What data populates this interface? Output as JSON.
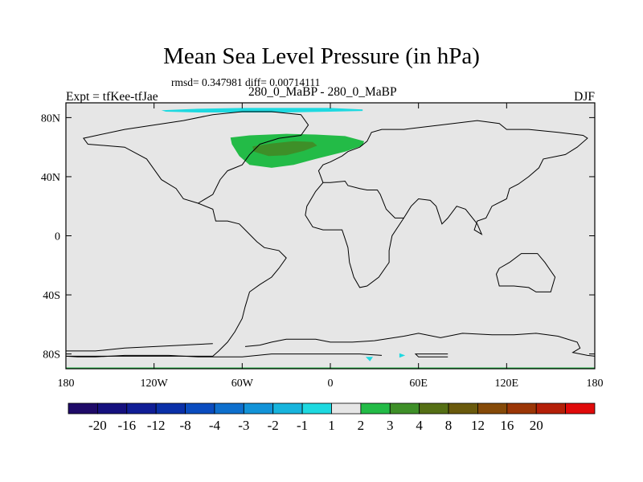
{
  "header": {
    "title": "Mean Sea Level Pressure (in hPa)",
    "stats": "rmsd= 0.347981 diff= 0.00714111",
    "expt": "Expt = tfKee-tfJae",
    "case": "280_0_MaBP - 280_0_MaBP",
    "season": "DJF"
  },
  "chart_data": {
    "type": "heatmap",
    "title": "Mean Sea Level Pressure (in hPa)",
    "xlim": [
      -180,
      180
    ],
    "ylim": [
      -90,
      90
    ],
    "x_ticks": [
      {
        "value": -180,
        "label": "180"
      },
      {
        "value": -120,
        "label": "120W"
      },
      {
        "value": -60,
        "label": "60W"
      },
      {
        "value": 0,
        "label": "0"
      },
      {
        "value": 60,
        "label": "60E"
      },
      {
        "value": 120,
        "label": "120E"
      },
      {
        "value": 180,
        "label": "180"
      }
    ],
    "y_ticks": [
      {
        "value": 80,
        "label": "80N"
      },
      {
        "value": 40,
        "label": "40N"
      },
      {
        "value": 0,
        "label": "0"
      },
      {
        "value": -40,
        "label": "40S"
      },
      {
        "value": -80,
        "label": "80S"
      }
    ],
    "background_color": "#e6e6e6",
    "colorbar": {
      "colors": [
        "#1f0a68",
        "#15107e",
        "#101e96",
        "#0a30a8",
        "#0a4cbf",
        "#0e6fcd",
        "#1293d8",
        "#17b4dd",
        "#1ed9e0",
        "#e6e6e6",
        "#23bb47",
        "#3e8f28",
        "#556f15",
        "#6a5a0c",
        "#854a08",
        "#9b3606",
        "#b41f08",
        "#e00a0a"
      ],
      "labels": [
        "-20",
        "-16",
        "-12",
        "-8",
        "-4",
        "-3",
        "-2",
        "-1",
        "1",
        "2",
        "3",
        "4",
        "8",
        "12",
        "16",
        "20"
      ]
    },
    "regions": [
      {
        "name": "arctic",
        "value_range": "-2 to -1",
        "color": "#1ed9e0",
        "points": [
          [
            -115,
            85
          ],
          [
            -90,
            86
          ],
          [
            -60,
            86.5
          ],
          [
            -30,
            86.5
          ],
          [
            0,
            86.5
          ],
          [
            22,
            85.5
          ],
          [
            22,
            84.5
          ],
          [
            0,
            84
          ],
          [
            -30,
            83.5
          ],
          [
            -60,
            83.5
          ],
          [
            -90,
            83.5
          ],
          [
            -112,
            84
          ]
        ]
      },
      {
        "name": "north-atlantic-outer",
        "value_range": "1 to 2",
        "color": "#23bb47",
        "points": [
          [
            -68,
            66.5
          ],
          [
            -55,
            68
          ],
          [
            -30,
            69
          ],
          [
            -10,
            68.5
          ],
          [
            10,
            67.5
          ],
          [
            23,
            64
          ],
          [
            22,
            61
          ],
          [
            10,
            57
          ],
          [
            -10,
            52
          ],
          [
            -25,
            48
          ],
          [
            -40,
            46
          ],
          [
            -55,
            48
          ],
          [
            -62,
            54
          ],
          [
            -67,
            62
          ]
        ]
      },
      {
        "name": "north-atlantic-inner",
        "value_range": "2 to 3",
        "color": "#3e8f28",
        "points": [
          [
            -53,
            60.5
          ],
          [
            -40,
            62.5
          ],
          [
            -25,
            64
          ],
          [
            -12,
            63.5
          ],
          [
            -9,
            61
          ],
          [
            -18,
            57.5
          ],
          [
            -30,
            54.5
          ],
          [
            -42,
            54
          ],
          [
            -52,
            57
          ]
        ]
      },
      {
        "name": "antarctic-patch-1",
        "value_range": "-2 to -1",
        "color": "#1ed9e0",
        "points": [
          [
            24,
            -82
          ],
          [
            29,
            -82
          ],
          [
            27,
            -85
          ]
        ]
      },
      {
        "name": "antarctic-patch-2",
        "value_range": "-2 to -1",
        "color": "#1ed9e0",
        "points": [
          [
            47,
            -79.5
          ],
          [
            51,
            -81
          ],
          [
            47,
            -82.5
          ]
        ]
      },
      {
        "name": "south-pole-strip",
        "value_range": "1 to 2",
        "color": "#23bb47",
        "points": [
          [
            -180,
            -89.2
          ],
          [
            180,
            -89.2
          ],
          [
            180,
            -90
          ],
          [
            -180,
            -90
          ]
        ]
      }
    ],
    "coastlines": [
      [
        [
          -180,
          -81.5
        ],
        [
          -80,
          -81.5
        ],
        [
          -76,
          -78
        ],
        [
          -70,
          -72
        ],
        [
          -65,
          -65
        ],
        [
          -60,
          -56
        ],
        [
          -58,
          -48
        ],
        [
          -55,
          -38
        ],
        [
          -48,
          -33
        ],
        [
          -40,
          -28
        ],
        [
          -35,
          -22
        ],
        [
          -30,
          -15
        ],
        [
          -35,
          -10
        ],
        [
          -45,
          -8
        ],
        [
          -50,
          -4
        ],
        [
          -58,
          4
        ],
        [
          -62,
          8
        ],
        [
          -70,
          10
        ],
        [
          -78,
          10
        ],
        [
          -80,
          18
        ],
        [
          -90,
          22
        ],
        [
          -100,
          25
        ],
        [
          -105,
          32
        ],
        [
          -115,
          38
        ],
        [
          -120,
          45
        ],
        [
          -125,
          52
        ],
        [
          -140,
          60
        ],
        [
          -165,
          62
        ],
        [
          -168,
          66
        ],
        [
          -140,
          72
        ],
        [
          -100,
          78
        ],
        [
          -80,
          82
        ],
        [
          -60,
          84
        ],
        [
          -40,
          84
        ],
        [
          -20,
          82
        ],
        [
          -15,
          75
        ],
        [
          -20,
          68
        ],
        [
          -35,
          66
        ],
        [
          -48,
          62
        ],
        [
          -55,
          55
        ],
        [
          -60,
          48
        ],
        [
          -70,
          44
        ],
        [
          -75,
          38
        ],
        [
          -80,
          28
        ],
        [
          -90,
          22
        ]
      ],
      [
        [
          -5,
          36
        ],
        [
          -8,
          44
        ],
        [
          -5,
          48
        ],
        [
          0,
          50
        ],
        [
          8,
          54
        ],
        [
          12,
          57
        ],
        [
          20,
          60
        ],
        [
          25,
          64
        ],
        [
          28,
          70
        ],
        [
          35,
          72
        ],
        [
          50,
          72
        ],
        [
          75,
          75
        ],
        [
          100,
          78
        ],
        [
          115,
          76
        ],
        [
          120,
          72
        ],
        [
          135,
          72
        ],
        [
          155,
          70
        ],
        [
          172,
          68
        ],
        [
          175,
          66
        ],
        [
          168,
          60
        ],
        [
          160,
          55
        ],
        [
          145,
          52
        ],
        [
          142,
          46
        ],
        [
          135,
          40
        ],
        [
          128,
          35
        ],
        [
          122,
          32
        ],
        [
          120,
          25
        ],
        [
          110,
          20
        ],
        [
          106,
          12
        ],
        [
          100,
          10
        ],
        [
          98,
          4
        ],
        [
          103,
          1
        ],
        [
          100,
          8
        ],
        [
          92,
          18
        ],
        [
          86,
          20
        ],
        [
          80,
          12
        ],
        [
          76,
          8
        ],
        [
          72,
          20
        ],
        [
          68,
          24
        ],
        [
          60,
          25
        ],
        [
          55,
          20
        ],
        [
          50,
          12
        ],
        [
          44,
          12
        ],
        [
          38,
          18
        ],
        [
          34,
          28
        ],
        [
          32,
          31
        ],
        [
          25,
          31
        ],
        [
          20,
          32
        ],
        [
          12,
          34
        ],
        [
          10,
          37
        ],
        [
          0,
          36
        ],
        [
          -5,
          36
        ]
      ],
      [
        [
          -5,
          36
        ],
        [
          -10,
          30
        ],
        [
          -16,
          20
        ],
        [
          -17,
          14
        ],
        [
          -12,
          6
        ],
        [
          -5,
          4
        ],
        [
          8,
          4
        ],
        [
          10,
          -2
        ],
        [
          12,
          -8
        ],
        [
          13,
          -18
        ],
        [
          16,
          -28
        ],
        [
          20,
          -35
        ],
        [
          25,
          -34
        ],
        [
          33,
          -28
        ],
        [
          40,
          -18
        ],
        [
          40,
          -10
        ],
        [
          42,
          0
        ],
        [
          50,
          12
        ]
      ],
      [
        [
          115,
          -22
        ],
        [
          113,
          -26
        ],
        [
          115,
          -34
        ],
        [
          125,
          -34
        ],
        [
          135,
          -35
        ],
        [
          140,
          -38
        ],
        [
          150,
          -38
        ],
        [
          153,
          -28
        ],
        [
          146,
          -18
        ],
        [
          141,
          -12
        ],
        [
          135,
          -12
        ],
        [
          130,
          -12
        ],
        [
          122,
          -18
        ],
        [
          115,
          -22
        ]
      ],
      [
        [
          -180,
          -78
        ],
        [
          -160,
          -78
        ],
        [
          -140,
          -76
        ],
        [
          -100,
          -74
        ],
        [
          -80,
          -73
        ]
      ],
      [
        [
          -58,
          -75
        ],
        [
          -48,
          -74
        ],
        [
          -40,
          -72
        ],
        [
          -30,
          -70
        ],
        [
          -20,
          -70
        ],
        [
          -10,
          -70
        ],
        [
          0,
          -72
        ],
        [
          15,
          -72
        ],
        [
          30,
          -71
        ],
        [
          50,
          -68
        ],
        [
          60,
          -66
        ],
        [
          75,
          -69
        ],
        [
          90,
          -66
        ],
        [
          110,
          -67
        ],
        [
          125,
          -67
        ],
        [
          140,
          -66
        ],
        [
          155,
          -68
        ],
        [
          168,
          -72
        ],
        [
          170,
          -76
        ],
        [
          165,
          -79
        ],
        [
          175,
          -81
        ],
        [
          180,
          -81.5
        ]
      ],
      [
        [
          -180,
          -81.5
        ],
        [
          -172,
          -82
        ],
        [
          -160,
          -82
        ],
        [
          -140,
          -81
        ],
        [
          -110,
          -81
        ],
        [
          -90,
          -82
        ],
        [
          -60,
          -82
        ],
        [
          -40,
          -80
        ],
        [
          -20,
          -80
        ],
        [
          0,
          -80
        ],
        [
          20,
          -80
        ],
        [
          35,
          -81
        ]
      ],
      [
        [
          80,
          -82
        ],
        [
          60,
          -82
        ],
        [
          58,
          -80
        ],
        [
          80,
          -80
        ]
      ]
    ]
  }
}
